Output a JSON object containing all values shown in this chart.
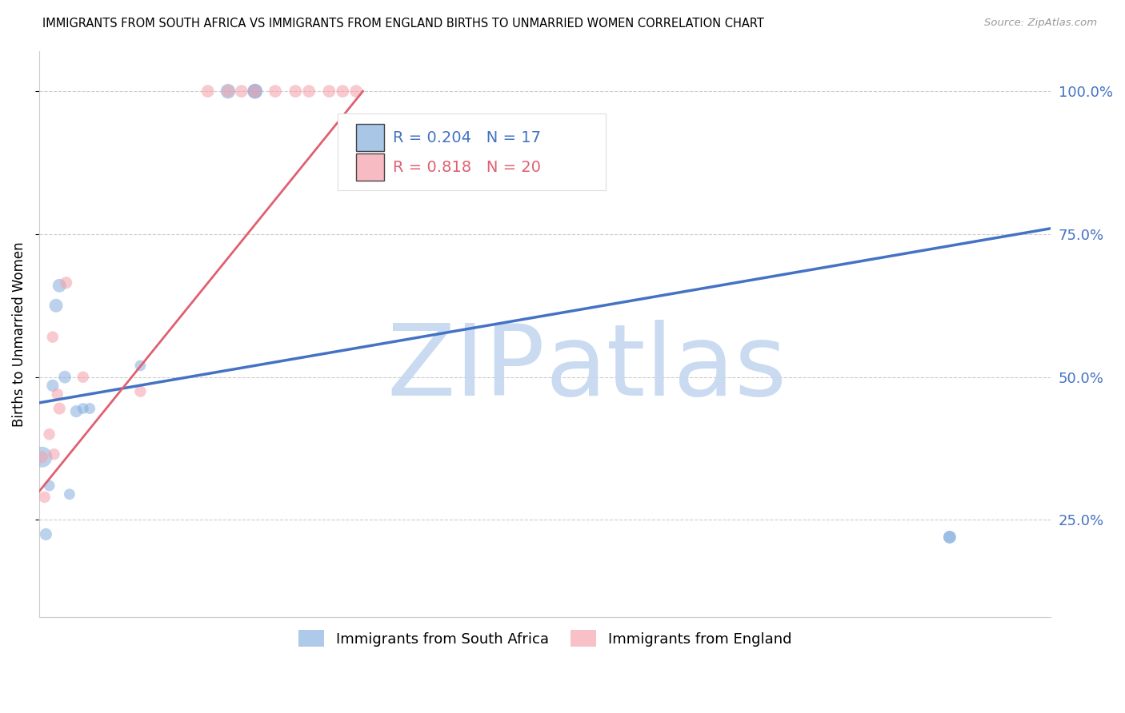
{
  "title": "IMMIGRANTS FROM SOUTH AFRICA VS IMMIGRANTS FROM ENGLAND BIRTHS TO UNMARRIED WOMEN CORRELATION CHART",
  "source": "Source: ZipAtlas.com",
  "ylabel": "Births to Unmarried Women",
  "xlim": [
    0.0,
    15.0
  ],
  "ylim": [
    8.0,
    107.0
  ],
  "xticks": [
    0.0,
    3.0,
    6.0,
    9.0,
    12.0,
    15.0
  ],
  "ytick_labels": [
    "25.0%",
    "50.0%",
    "75.0%",
    "100.0%"
  ],
  "ytick_values": [
    25.0,
    50.0,
    75.0,
    100.0
  ],
  "R_blue": 0.204,
  "N_blue": 17,
  "R_pink": 0.818,
  "N_pink": 20,
  "color_blue": "#85AEDD",
  "color_pink": "#F4A0AA",
  "color_line_blue": "#4472C4",
  "color_line_pink": "#E06070",
  "color_axis_labels": "#4472C4",
  "watermark_zip": "#C5D8F0",
  "watermark_atlas": "#C5D8F0",
  "legend_label_blue": "Immigrants from South Africa",
  "legend_label_pink": "Immigrants from England",
  "blue_x": [
    0.04,
    0.1,
    0.15,
    0.2,
    0.25,
    0.3,
    0.38,
    0.45,
    0.55,
    0.65,
    0.75,
    1.5,
    2.8,
    3.2,
    3.2,
    13.5,
    13.5
  ],
  "blue_y": [
    36.0,
    22.5,
    31.0,
    48.5,
    62.5,
    66.0,
    50.0,
    29.5,
    44.0,
    44.5,
    44.5,
    52.0,
    100.0,
    100.0,
    100.0,
    22.0,
    22.0
  ],
  "blue_size": [
    350,
    120,
    100,
    120,
    150,
    150,
    130,
    100,
    120,
    100,
    100,
    100,
    180,
    180,
    180,
    130,
    130
  ],
  "pink_x": [
    0.04,
    0.08,
    0.15,
    0.2,
    0.22,
    0.27,
    0.3,
    0.4,
    0.65,
    1.5,
    2.5,
    2.8,
    3.0,
    3.2,
    3.5,
    3.8,
    4.0,
    4.3,
    4.5,
    4.7
  ],
  "pink_y": [
    36.0,
    29.0,
    40.0,
    57.0,
    36.5,
    47.0,
    44.5,
    66.5,
    50.0,
    47.5,
    100.0,
    100.0,
    100.0,
    100.0,
    100.0,
    100.0,
    100.0,
    100.0,
    100.0,
    100.0
  ],
  "pink_size": [
    120,
    110,
    110,
    110,
    110,
    110,
    120,
    120,
    110,
    110,
    130,
    130,
    130,
    130,
    130,
    130,
    130,
    130,
    130,
    130
  ],
  "blue_trend_x": [
    0.0,
    15.0
  ],
  "blue_trend_y": [
    45.5,
    76.0
  ],
  "pink_trend_x": [
    0.0,
    4.8
  ],
  "pink_trend_y": [
    30.0,
    100.0
  ]
}
